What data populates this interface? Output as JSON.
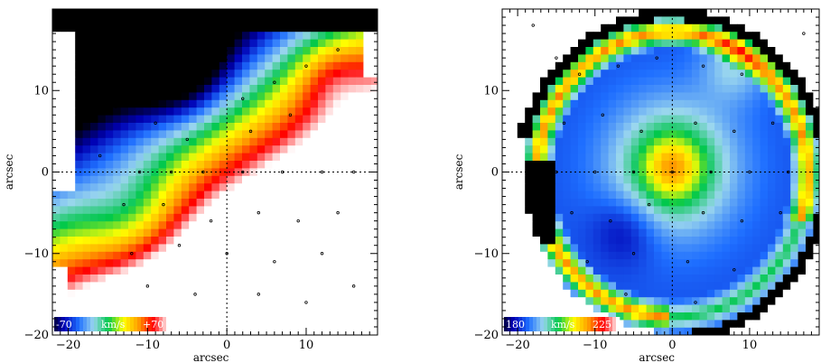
{
  "chart_data": [
    {
      "type": "heatmap",
      "name": "velocity-map",
      "xlabel": "arcsec",
      "ylabel": "arcsec",
      "xlim": [
        -22,
        19
      ],
      "ylim": [
        -20,
        20
      ],
      "xticks": [
        -20,
        -10,
        0,
        10
      ],
      "yticks": [
        -20,
        -10,
        0,
        10
      ],
      "tick_labels_x": [
        "−20",
        "−10",
        "0",
        "10"
      ],
      "tick_labels_y": [
        "−20",
        "−10",
        "0",
        "10"
      ],
      "colorbar": {
        "min_label": "-70",
        "unit_label": "km/s",
        "max_label": "+70",
        "min": -70,
        "max": 70
      },
      "colormap": [
        "#000000",
        "#0000b4",
        "#1e6eff",
        "#9ad6ee",
        "#00c84b",
        "#ffff00",
        "#ffa000",
        "#ff0000",
        "#ffffff"
      ],
      "sample_points": [
        [
          -12,
          13
        ],
        [
          -8,
          12
        ],
        [
          -4,
          10
        ],
        [
          2,
          9
        ],
        [
          6,
          11
        ],
        [
          10,
          13
        ],
        [
          14,
          15
        ],
        [
          -14,
          8
        ],
        [
          -9,
          6
        ],
        [
          -5,
          4
        ],
        [
          3,
          5
        ],
        [
          8,
          7
        ],
        [
          -16,
          2
        ],
        [
          -11,
          0
        ],
        [
          -7,
          0
        ],
        [
          -3,
          0
        ],
        [
          2,
          0
        ],
        [
          7,
          0
        ],
        [
          12,
          0
        ],
        [
          16,
          0
        ],
        [
          -13,
          -4
        ],
        [
          -8,
          -4
        ],
        [
          -2,
          -6
        ],
        [
          4,
          -5
        ],
        [
          9,
          -6
        ],
        [
          14,
          -5
        ],
        [
          -12,
          -10
        ],
        [
          -6,
          -9
        ],
        [
          0,
          -10
        ],
        [
          6,
          -11
        ],
        [
          12,
          -10
        ],
        [
          -10,
          -14
        ],
        [
          -4,
          -15
        ],
        [
          4,
          -15
        ],
        [
          10,
          -16
        ],
        [
          16,
          -14
        ]
      ]
    },
    {
      "type": "heatmap",
      "name": "dispersion-map",
      "xlabel": "arcsec",
      "ylabel": "arcsec",
      "xlim": [
        -22,
        19
      ],
      "ylim": [
        -20,
        20
      ],
      "xticks": [
        -20,
        -10,
        0,
        10
      ],
      "yticks": [
        -20,
        -10,
        0,
        10
      ],
      "tick_labels_x": [
        "−20",
        "−10",
        "0",
        "10"
      ],
      "tick_labels_y": [
        "−20",
        "−10",
        "0",
        "10"
      ],
      "colorbar": {
        "min_label": "180",
        "unit_label": "km/s",
        "max_label": "225",
        "min": 180,
        "max": 225
      },
      "colormap": [
        "#000000",
        "#0000b4",
        "#1e6eff",
        "#9ad6ee",
        "#00c84b",
        "#ffff00",
        "#ffa000",
        "#ff0000",
        "#ffffff"
      ],
      "sample_points": [
        [
          -12,
          12
        ],
        [
          -7,
          13
        ],
        [
          -2,
          14
        ],
        [
          4,
          13
        ],
        [
          9,
          12
        ],
        [
          -14,
          6
        ],
        [
          -9,
          7
        ],
        [
          -4,
          5
        ],
        [
          3,
          6
        ],
        [
          8,
          5
        ],
        [
          13,
          6
        ],
        [
          -15,
          0
        ],
        [
          -10,
          0
        ],
        [
          -5,
          0
        ],
        [
          0,
          0
        ],
        [
          5,
          0
        ],
        [
          10,
          0
        ],
        [
          15,
          0
        ],
        [
          -13,
          -5
        ],
        [
          -8,
          -6
        ],
        [
          -3,
          -4
        ],
        [
          4,
          -5
        ],
        [
          9,
          -6
        ],
        [
          14,
          -5
        ],
        [
          -11,
          -11
        ],
        [
          -5,
          -10
        ],
        [
          2,
          -11
        ],
        [
          8,
          -12
        ],
        [
          -6,
          -15
        ],
        [
          3,
          -16
        ],
        [
          -18,
          18
        ],
        [
          -15,
          14
        ],
        [
          17,
          17
        ]
      ]
    }
  ]
}
